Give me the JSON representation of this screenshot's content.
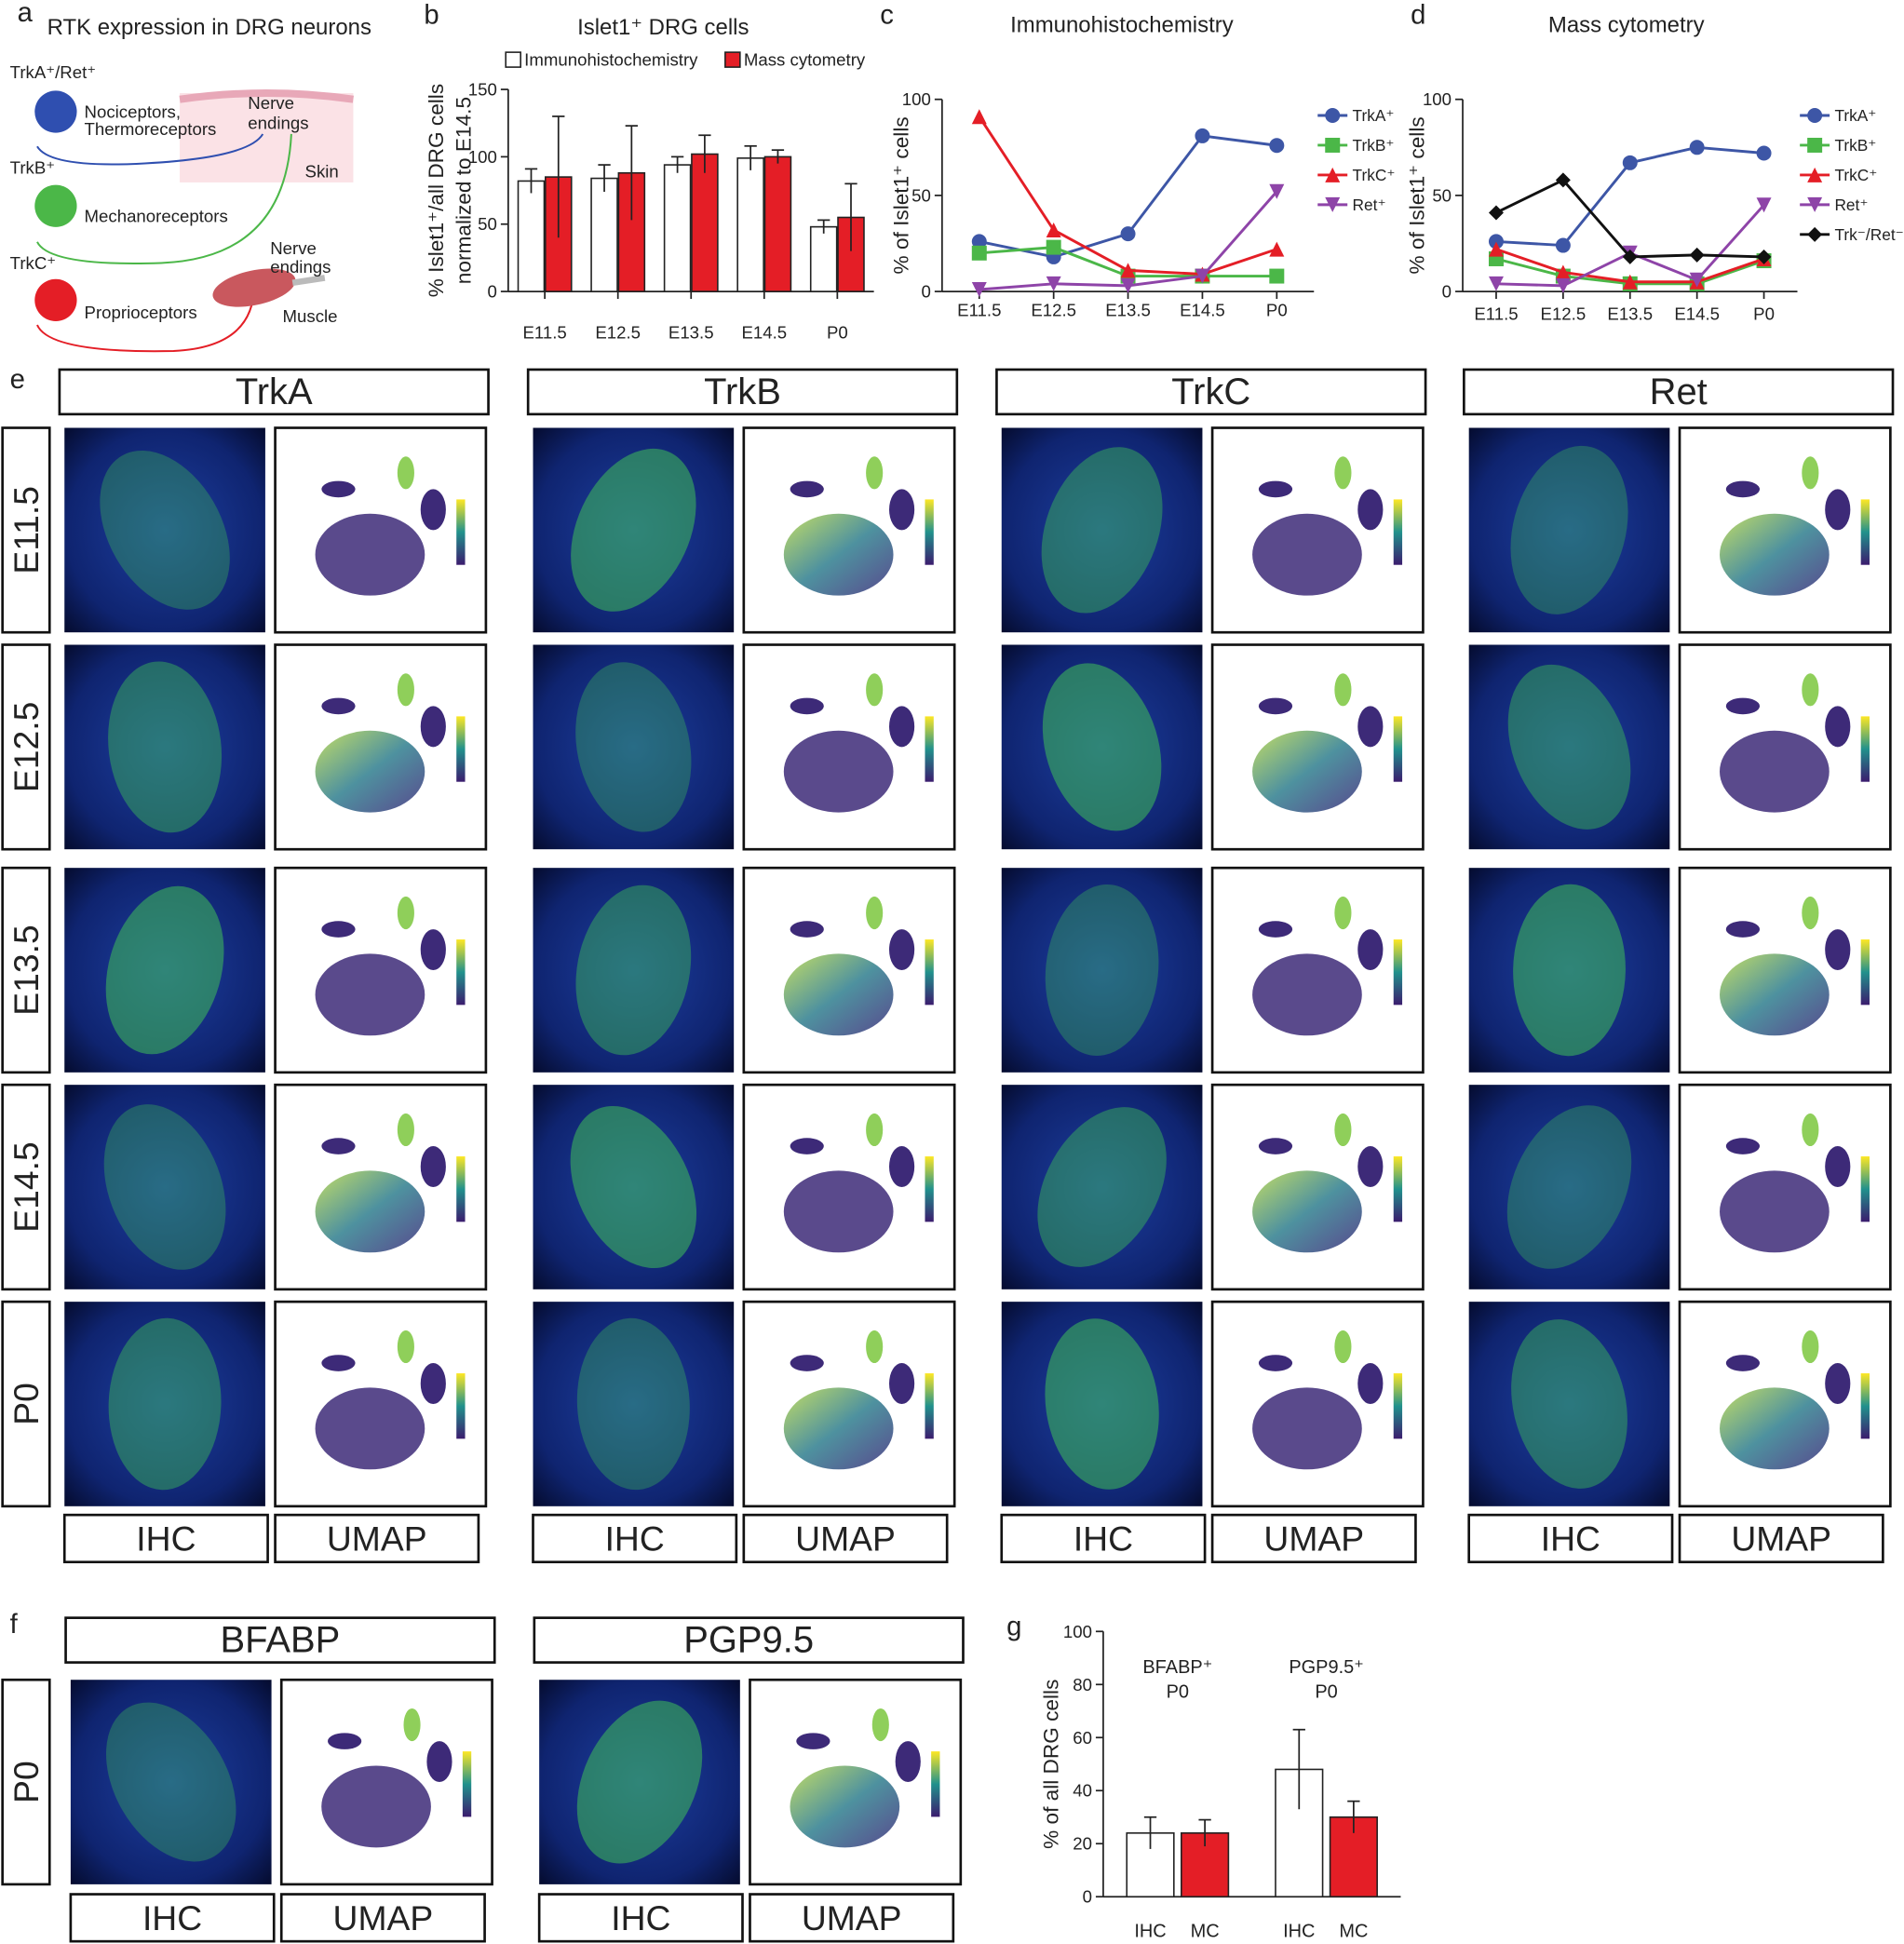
{
  "figure": {
    "panel_labels": [
      "a",
      "b",
      "c",
      "d",
      "e",
      "f",
      "g"
    ],
    "panel_a": {
      "title": "RTK expression in DRG neurons",
      "labels": [
        "TrkA⁺/Ret⁺",
        "Nociceptors,",
        "Thermoreceptors",
        "Nerve",
        "endings",
        "Skin",
        "TrkB⁺",
        "Mechanoreceptors",
        "TrkC⁺",
        "Nerve",
        "endings",
        "Proprioceptors",
        "Muscle"
      ]
    },
    "panel_e": {
      "columns": [
        "TrkA",
        "TrkB",
        "TrkC",
        "Ret"
      ],
      "rows": [
        "E11.5",
        "E12.5",
        "E13.5",
        "E14.5",
        "P0"
      ],
      "footer": [
        "IHC",
        "UMAP"
      ]
    },
    "panel_f": {
      "columns": [
        "BFABP",
        "PGP9.5"
      ],
      "rows": [
        "P0"
      ],
      "footer": [
        "IHC",
        "UMAP"
      ]
    }
  },
  "chart_data": [
    {
      "type": "bar",
      "title": "Islet1⁺ DRG cells",
      "y_label": [
        "% Islet1⁺/all DRG cells",
        "normalized to E14.5"
      ],
      "categories": [
        "E11.5",
        "E12.5",
        "E13.5",
        "E14.5",
        "P0"
      ],
      "series": [
        {
          "name": "Immunohistochemistry",
          "color": "#ffffff",
          "values": [
            82,
            84,
            94,
            99,
            48
          ],
          "errors": [
            9,
            10,
            6,
            9,
            5
          ]
        },
        {
          "name": "Mass cytometry",
          "color": "#e41e26",
          "values": [
            85,
            88,
            102,
            100,
            55
          ],
          "errors": [
            45,
            35,
            14,
            5,
            25
          ]
        }
      ],
      "ylim": [
        0,
        150
      ],
      "yticks": [
        0,
        50,
        100,
        150
      ]
    },
    {
      "type": "line",
      "title": "Immunohistochemistry",
      "y_label": [
        "% of Islet1⁺ cells"
      ],
      "categories": [
        "E11.5",
        "E12.5",
        "E13.5",
        "E14.5",
        "P0"
      ],
      "series": [
        {
          "name": "TrkA⁺",
          "color": "#3d56a6",
          "marker": "circle",
          "values": [
            26,
            18,
            30,
            81,
            76
          ]
        },
        {
          "name": "TrkB⁺",
          "color": "#4bb748",
          "marker": "square",
          "values": [
            20,
            23,
            8,
            8,
            8
          ]
        },
        {
          "name": "TrkC⁺",
          "color": "#e41e26",
          "marker": "triangle",
          "values": [
            91,
            32,
            11,
            9,
            22
          ]
        },
        {
          "name": "Ret⁺",
          "color": "#8e44a8",
          "marker": "triangle-down",
          "values": [
            1,
            4,
            3,
            8,
            52
          ]
        }
      ],
      "ylim": [
        0,
        100
      ],
      "yticks": [
        0,
        50,
        100
      ]
    },
    {
      "type": "line",
      "title": "Mass cytometry",
      "y_label": [
        "% of Islet1⁺ cells"
      ],
      "categories": [
        "E11.5",
        "E12.5",
        "E13.5",
        "E14.5",
        "P0"
      ],
      "series": [
        {
          "name": "TrkA⁺",
          "color": "#3d56a6",
          "marker": "circle",
          "values": [
            26,
            24,
            67,
            75,
            72
          ]
        },
        {
          "name": "TrkB⁺",
          "color": "#4bb748",
          "marker": "square",
          "values": [
            17,
            8,
            4,
            4,
            16
          ]
        },
        {
          "name": "TrkC⁺",
          "color": "#e41e26",
          "marker": "triangle",
          "values": [
            22,
            10,
            5,
            5,
            17
          ]
        },
        {
          "name": "Ret⁺",
          "color": "#8e44a8",
          "marker": "triangle-down",
          "values": [
            4,
            3,
            20,
            6,
            45
          ]
        },
        {
          "name": "Trk⁻/Ret⁻",
          "color": "#111111",
          "marker": "diamond",
          "values": [
            41,
            58,
            18,
            19,
            18
          ]
        }
      ],
      "ylim": [
        0,
        100
      ],
      "yticks": [
        0,
        50,
        100
      ]
    },
    {
      "type": "bar",
      "y_label": [
        "% of all DRG cells"
      ],
      "group_labels": [
        [
          "BFABP⁺",
          "P0"
        ],
        [
          "PGP9.5⁺",
          "P0"
        ]
      ],
      "categories": [
        "IHC",
        "MC",
        "IHC",
        "MC"
      ],
      "values": [
        24,
        24,
        48,
        30
      ],
      "errors": [
        6,
        5,
        15,
        6
      ],
      "colors": [
        "#ffffff",
        "#e41e26",
        "#ffffff",
        "#e41e26"
      ],
      "ylim": [
        0,
        100
      ],
      "yticks": [
        0,
        20,
        40,
        60,
        80,
        100
      ]
    }
  ]
}
